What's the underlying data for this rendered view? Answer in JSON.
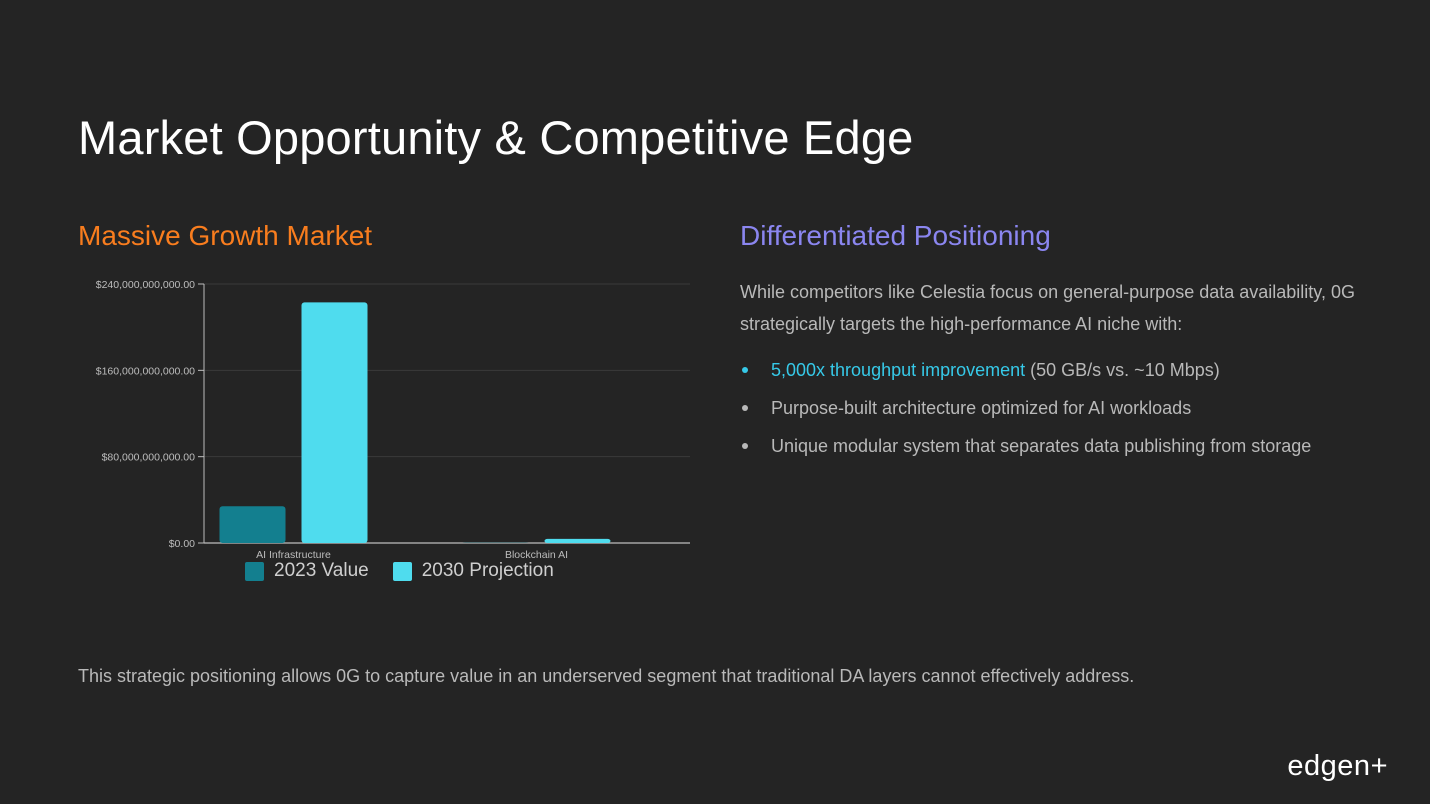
{
  "slide": {
    "title": "Market Opportunity & Competitive Edge",
    "left_heading": "Massive Growth Market",
    "right_heading": "Differentiated Positioning",
    "intro": "While competitors like Celestia focus on general-purpose data availability, 0G strategically targets the high-performance AI niche with:",
    "bullets": [
      {
        "highlight": "5,000x throughput improvement",
        "text": " (50 GB/s vs. ~10 Mbps)"
      },
      {
        "highlight": "",
        "text": "Purpose-built architecture optimized for AI workloads"
      },
      {
        "highlight": "",
        "text": "Unique modular system that separates data publishing from storage"
      }
    ],
    "footer": "This strategic positioning allows 0G to capture value in an underserved segment that traditional DA layers cannot effectively address.",
    "logo": "edgen+"
  },
  "colors": {
    "background": "#242424",
    "orange_heading": "#f97d1e",
    "purple_heading": "#8b86f0",
    "accent_cyan": "#36c9e8",
    "series_2023": "#137f8f",
    "series_2030": "#4fdcee"
  },
  "chart_data": {
    "type": "bar",
    "categories": [
      "AI Infrastructure",
      "Blockchain AI"
    ],
    "series": [
      {
        "name": "2023 Value",
        "values": [
          34000000000,
          200000000
        ],
        "color": "#137f8f"
      },
      {
        "name": "2030 Projection",
        "values": [
          223000000000,
          3800000000
        ],
        "color": "#4fdcee"
      }
    ],
    "yticks": [
      {
        "value": 0,
        "label": "$0.00"
      },
      {
        "value": 80000000000,
        "label": "$80,000,000,000.00"
      },
      {
        "value": 160000000000,
        "label": "$160,000,000,000.00"
      },
      {
        "value": 240000000000,
        "label": "$240,000,000,000.00"
      }
    ],
    "ylim": [
      0,
      240000000000
    ],
    "grid": true,
    "legend": "bottom"
  }
}
